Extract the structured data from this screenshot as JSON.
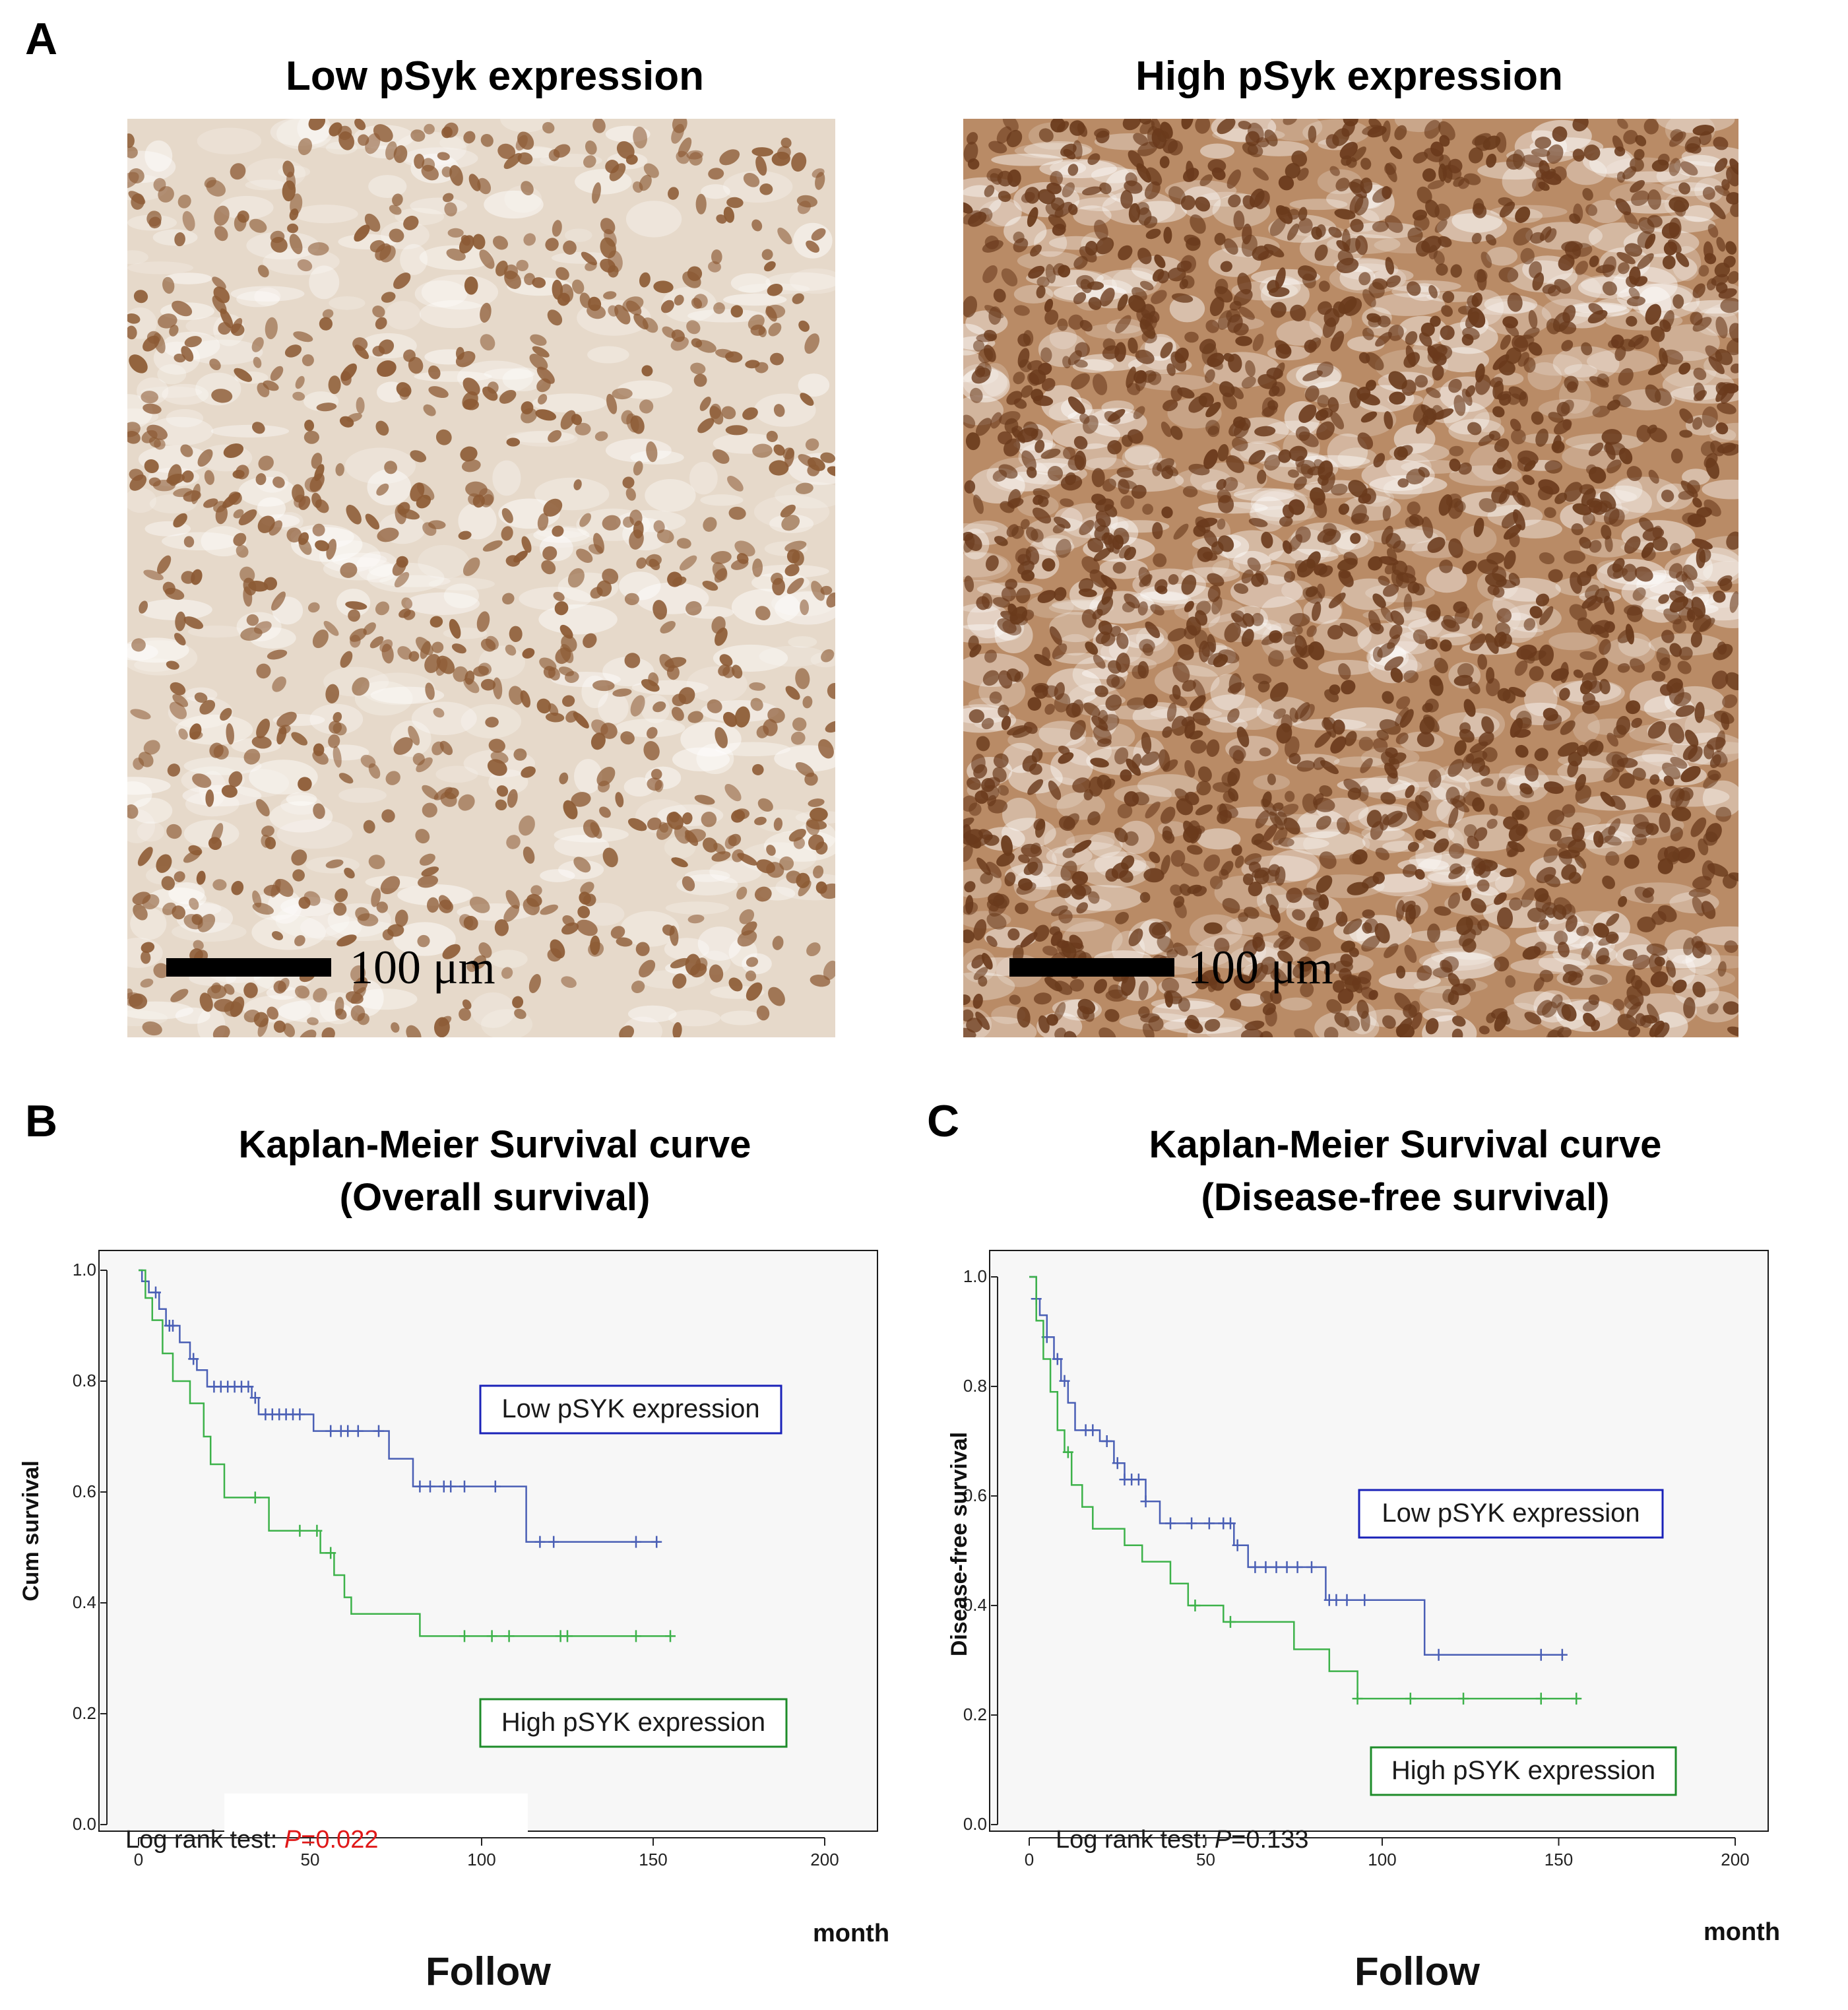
{
  "panel_a": {
    "letter": "A",
    "left_image": {
      "title": "Low pSyk expression",
      "scale_label": "100 μm",
      "stain": "low",
      "colors": {
        "background": "#e6d9ca",
        "nucleus": "#8c5a34"
      }
    },
    "right_image": {
      "title": "High pSyk expression",
      "scale_label": "100 μm",
      "stain": "high",
      "colors": {
        "background": "#b98b66",
        "nucleus": "#6a3a1c"
      }
    }
  },
  "chart_data": [
    {
      "type": "line",
      "panel": "B",
      "title": "Kaplan-Meier Survival curve",
      "subtitle": "(Overall survival)",
      "xlabel": "Follow",
      "xunit": "month",
      "ylabel": "Cum survival",
      "xlim": [
        0,
        200
      ],
      "ylim": [
        0,
        1.0
      ],
      "xticks": [
        0,
        50,
        100,
        150,
        200
      ],
      "yticks": [
        0.0,
        0.2,
        0.4,
        0.6,
        0.8,
        1.0
      ],
      "grid": false,
      "series": [
        {
          "name": "Low pSYK expression",
          "color": "#4a5fb5",
          "steps": [
            [
              0,
              1.0
            ],
            [
              1,
              0.98
            ],
            [
              3,
              0.96
            ],
            [
              6,
              0.93
            ],
            [
              8,
              0.9
            ],
            [
              12,
              0.87
            ],
            [
              15,
              0.84
            ],
            [
              17,
              0.82
            ],
            [
              20,
              0.79
            ],
            [
              33,
              0.77
            ],
            [
              35,
              0.74
            ],
            [
              51,
              0.71
            ],
            [
              73,
              0.66
            ],
            [
              80,
              0.61
            ],
            [
              113,
              0.51
            ],
            [
              152,
              0.51
            ]
          ],
          "censored": [
            5,
            9,
            10,
            16,
            22,
            24,
            26,
            28,
            30,
            32,
            34,
            37,
            39,
            41,
            43,
            45,
            47,
            56,
            59,
            61,
            64,
            70,
            82,
            85,
            89,
            91,
            95,
            104,
            117,
            121,
            145,
            151
          ]
        },
        {
          "name": "High pSYK expression",
          "color": "#3db24a",
          "steps": [
            [
              0,
              1.0
            ],
            [
              2,
              0.95
            ],
            [
              4,
              0.91
            ],
            [
              7,
              0.85
            ],
            [
              10,
              0.8
            ],
            [
              15,
              0.76
            ],
            [
              19,
              0.7
            ],
            [
              21,
              0.65
            ],
            [
              25,
              0.59
            ],
            [
              38,
              0.53
            ],
            [
              53,
              0.49
            ],
            [
              57,
              0.45
            ],
            [
              60,
              0.41
            ],
            [
              62,
              0.38
            ],
            [
              82,
              0.34
            ],
            [
              155,
              0.34
            ]
          ],
          "censored": [
            34,
            47,
            52,
            56,
            95,
            103,
            108,
            123,
            125,
            145,
            155
          ]
        }
      ],
      "legend_labels": [
        "Low pSYK expression",
        "High pSYK expression"
      ],
      "annotation_prefix": "Log rank test: ",
      "annotation_p": "P",
      "annotation_value": "=0.022"
    },
    {
      "type": "line",
      "panel": "C",
      "title": "Kaplan-Meier Survival curve",
      "subtitle": "(Disease-free survival)",
      "xlabel": "Follow",
      "xunit": "month",
      "ylabel": "Disease-free survival",
      "xlim": [
        0,
        200
      ],
      "ylim": [
        0,
        1.0
      ],
      "xticks": [
        0,
        50,
        100,
        150,
        200
      ],
      "yticks": [
        0.0,
        0.2,
        0.4,
        0.6,
        0.8,
        1.0
      ],
      "grid": false,
      "series": [
        {
          "name": "Low pSYK expression",
          "color": "#4a5fb5",
          "steps": [
            [
              0,
              1.0
            ],
            [
              2,
              0.96
            ],
            [
              3,
              0.93
            ],
            [
              5,
              0.89
            ],
            [
              7,
              0.85
            ],
            [
              9,
              0.81
            ],
            [
              11,
              0.77
            ],
            [
              13,
              0.72
            ],
            [
              20,
              0.7
            ],
            [
              24,
              0.66
            ],
            [
              27,
              0.63
            ],
            [
              33,
              0.59
            ],
            [
              37,
              0.55
            ],
            [
              58,
              0.51
            ],
            [
              62,
              0.47
            ],
            [
              84,
              0.41
            ],
            [
              112,
              0.31
            ],
            [
              152,
              0.31
            ]
          ],
          "censored": [
            2,
            5,
            8,
            10,
            16,
            18,
            22,
            25,
            27,
            29,
            31,
            33,
            40,
            46,
            51,
            55,
            57,
            59,
            64,
            67,
            70,
            73,
            76,
            80,
            85,
            87,
            90,
            95,
            116,
            145,
            151
          ]
        },
        {
          "name": "High pSYK expression",
          "color": "#3db24a",
          "steps": [
            [
              0,
              1.0
            ],
            [
              2,
              0.92
            ],
            [
              4,
              0.85
            ],
            [
              6,
              0.79
            ],
            [
              8,
              0.72
            ],
            [
              10,
              0.68
            ],
            [
              12,
              0.62
            ],
            [
              15,
              0.58
            ],
            [
              18,
              0.54
            ],
            [
              27,
              0.51
            ],
            [
              32,
              0.48
            ],
            [
              40,
              0.44
            ],
            [
              45,
              0.4
            ],
            [
              55,
              0.37
            ],
            [
              75,
              0.32
            ],
            [
              85,
              0.28
            ],
            [
              93,
              0.23
            ],
            [
              156,
              0.23
            ]
          ],
          "censored": [
            11,
            47,
            57,
            93,
            108,
            123,
            145,
            155
          ]
        }
      ],
      "legend_labels": [
        "Low pSYK expression",
        "High pSYK expression"
      ],
      "annotation_prefix": "Log rank test: ",
      "annotation_p": "P",
      "annotation_value": "=0.133"
    }
  ]
}
